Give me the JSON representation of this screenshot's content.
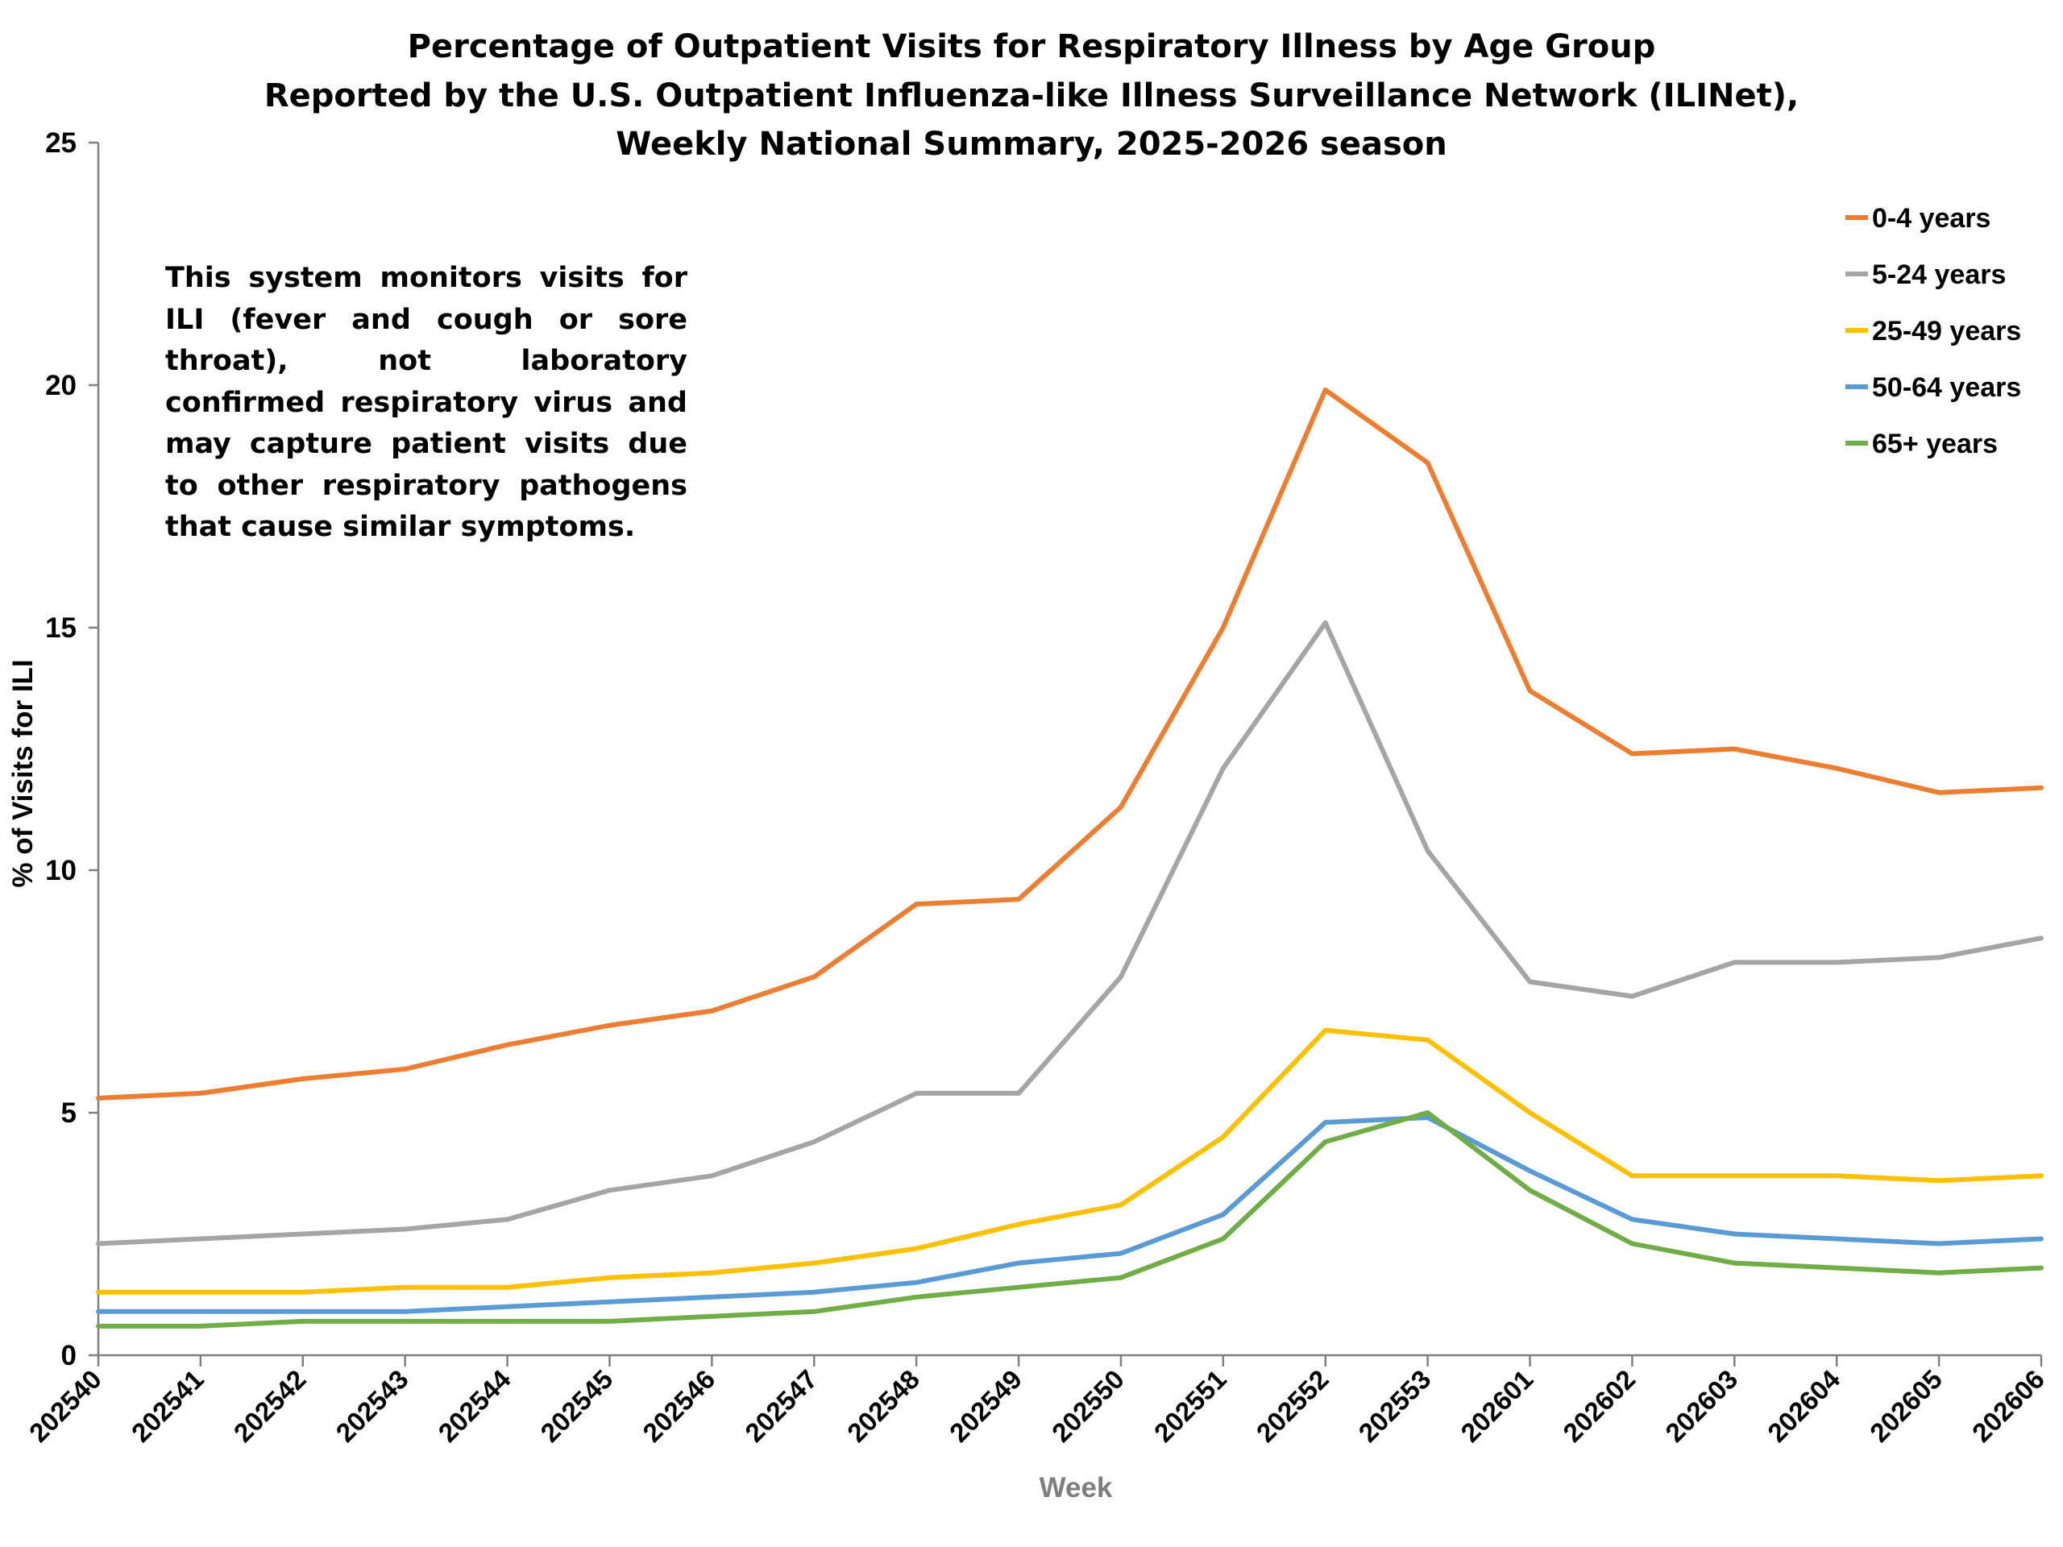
{
  "chart_data": {
    "type": "line",
    "title": [
      "Percentage of Outpatient Visits for Respiratory Illness by Age Group",
      "Reported by the U.S. Outpatient Influenza-like Illness Surveillance Network (ILINet),",
      "Weekly National Summary, 2025-2026 season"
    ],
    "xlabel": "Week",
    "ylabel": "% of Visits for ILI",
    "ylim": [
      0,
      25
    ],
    "yticks": [
      0,
      5,
      10,
      15,
      20,
      25
    ],
    "categories": [
      "202540",
      "202541",
      "202542",
      "202543",
      "202544",
      "202545",
      "202546",
      "202547",
      "202548",
      "202549",
      "202550",
      "202551",
      "202552",
      "202553",
      "202601",
      "202602",
      "202603",
      "202604",
      "202605",
      "202606"
    ],
    "legend_position": "top-right",
    "grid": false,
    "series": [
      {
        "name": "0-4 years",
        "color": "#ED7D31",
        "values": [
          5.3,
          5.4,
          5.7,
          5.9,
          6.4,
          6.8,
          7.1,
          7.8,
          9.3,
          9.4,
          11.3,
          15.0,
          19.9,
          18.4,
          13.7,
          12.4,
          12.5,
          12.1,
          11.6,
          11.7
        ]
      },
      {
        "name": "5-24 years",
        "color": "#A5A5A5",
        "values": [
          2.3,
          2.4,
          2.5,
          2.6,
          2.8,
          3.4,
          3.7,
          4.4,
          5.4,
          5.4,
          7.8,
          12.1,
          15.1,
          10.4,
          7.7,
          7.4,
          8.1,
          8.1,
          8.2,
          8.6
        ]
      },
      {
        "name": "25-49 years",
        "color": "#FFC000",
        "values": [
          1.3,
          1.3,
          1.3,
          1.4,
          1.4,
          1.6,
          1.7,
          1.9,
          2.2,
          2.7,
          3.1,
          4.5,
          6.7,
          6.5,
          5.0,
          3.7,
          3.7,
          3.7,
          3.6,
          3.7
        ]
      },
      {
        "name": "50-64 years",
        "color": "#5B9BD5",
        "values": [
          0.9,
          0.9,
          0.9,
          0.9,
          1.0,
          1.1,
          1.2,
          1.3,
          1.5,
          1.9,
          2.1,
          2.9,
          4.8,
          4.9,
          3.8,
          2.8,
          2.5,
          2.4,
          2.3,
          2.4
        ]
      },
      {
        "name": "65+ years",
        "color": "#70AD47",
        "values": [
          0.6,
          0.6,
          0.7,
          0.7,
          0.7,
          0.7,
          0.8,
          0.9,
          1.2,
          1.4,
          1.6,
          2.4,
          4.4,
          5.0,
          3.4,
          2.3,
          1.9,
          1.8,
          1.7,
          1.8
        ]
      }
    ],
    "annotation": "This system monitors visits for ILI (fever and cough or sore throat), not laboratory confirmed respiratory virus and may capture patient visits due to other respiratory pathogens that cause similar symptoms.",
    "colors": {
      "axis": "#808080",
      "xlabel": "#7F7F7F",
      "text": "#000000"
    }
  }
}
